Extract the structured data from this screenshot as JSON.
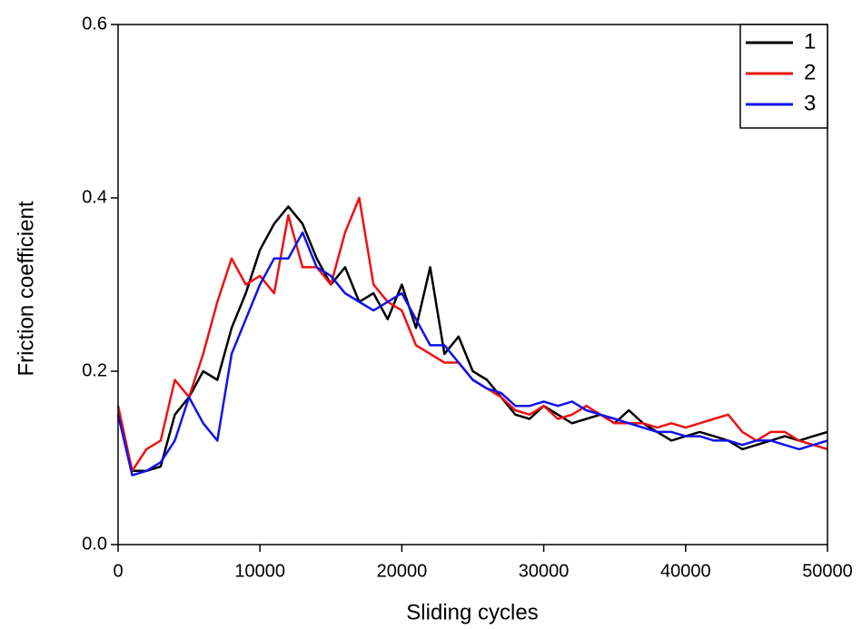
{
  "chart_data": {
    "type": "line",
    "xlabel": "Sliding cycles",
    "ylabel": "Friction coefficient",
    "x": [
      0,
      1000,
      2000,
      3000,
      4000,
      5000,
      6000,
      7000,
      8000,
      9000,
      10000,
      11000,
      12000,
      13000,
      14000,
      15000,
      16000,
      17000,
      18000,
      19000,
      20000,
      21000,
      22000,
      23000,
      24000,
      25000,
      26000,
      27000,
      28000,
      29000,
      30000,
      31000,
      32000,
      33000,
      34000,
      35000,
      36000,
      37000,
      38000,
      39000,
      40000,
      41000,
      42000,
      43000,
      44000,
      45000,
      46000,
      47000,
      48000,
      49000,
      50000
    ],
    "series": [
      {
        "name": "1",
        "color": "#000000",
        "values": [
          0.15,
          0.085,
          0.085,
          0.09,
          0.15,
          0.17,
          0.2,
          0.19,
          0.25,
          0.29,
          0.34,
          0.37,
          0.39,
          0.37,
          0.33,
          0.3,
          0.32,
          0.28,
          0.29,
          0.26,
          0.3,
          0.25,
          0.32,
          0.22,
          0.24,
          0.2,
          0.19,
          0.17,
          0.15,
          0.145,
          0.16,
          0.15,
          0.14,
          0.145,
          0.15,
          0.14,
          0.155,
          0.14,
          0.13,
          0.12,
          0.125,
          0.13,
          0.125,
          0.12,
          0.11,
          0.115,
          0.12,
          0.125,
          0.12,
          0.125,
          0.13
        ]
      },
      {
        "name": "2",
        "color": "#ee1111",
        "values": [
          0.16,
          0.085,
          0.11,
          0.12,
          0.19,
          0.17,
          0.22,
          0.28,
          0.33,
          0.3,
          0.31,
          0.29,
          0.38,
          0.32,
          0.32,
          0.3,
          0.36,
          0.4,
          0.3,
          0.28,
          0.27,
          0.23,
          0.22,
          0.21,
          0.21,
          0.19,
          0.18,
          0.17,
          0.155,
          0.15,
          0.16,
          0.145,
          0.15,
          0.16,
          0.15,
          0.14,
          0.14,
          0.14,
          0.135,
          0.14,
          0.135,
          0.14,
          0.145,
          0.15,
          0.13,
          0.12,
          0.13,
          0.13,
          0.12,
          0.115,
          0.11
        ]
      },
      {
        "name": "3",
        "color": "#1111ee",
        "values": [
          0.15,
          0.08,
          0.085,
          0.095,
          0.12,
          0.17,
          0.14,
          0.12,
          0.22,
          0.26,
          0.3,
          0.33,
          0.33,
          0.36,
          0.32,
          0.31,
          0.29,
          0.28,
          0.27,
          0.28,
          0.29,
          0.26,
          0.23,
          0.23,
          0.21,
          0.19,
          0.18,
          0.175,
          0.16,
          0.16,
          0.165,
          0.16,
          0.165,
          0.155,
          0.15,
          0.145,
          0.14,
          0.135,
          0.13,
          0.13,
          0.125,
          0.125,
          0.12,
          0.12,
          0.115,
          0.12,
          0.12,
          0.115,
          0.11,
          0.115,
          0.12
        ]
      }
    ],
    "xlim": [
      0,
      50000
    ],
    "xticks": [
      0,
      10000,
      20000,
      30000,
      40000,
      50000
    ],
    "ylim": [
      0,
      0.6
    ],
    "yticks": [
      {
        "value": 0,
        "label": "0.0"
      },
      0.2,
      0.4,
      0.6
    ],
    "legend": "upper right"
  }
}
